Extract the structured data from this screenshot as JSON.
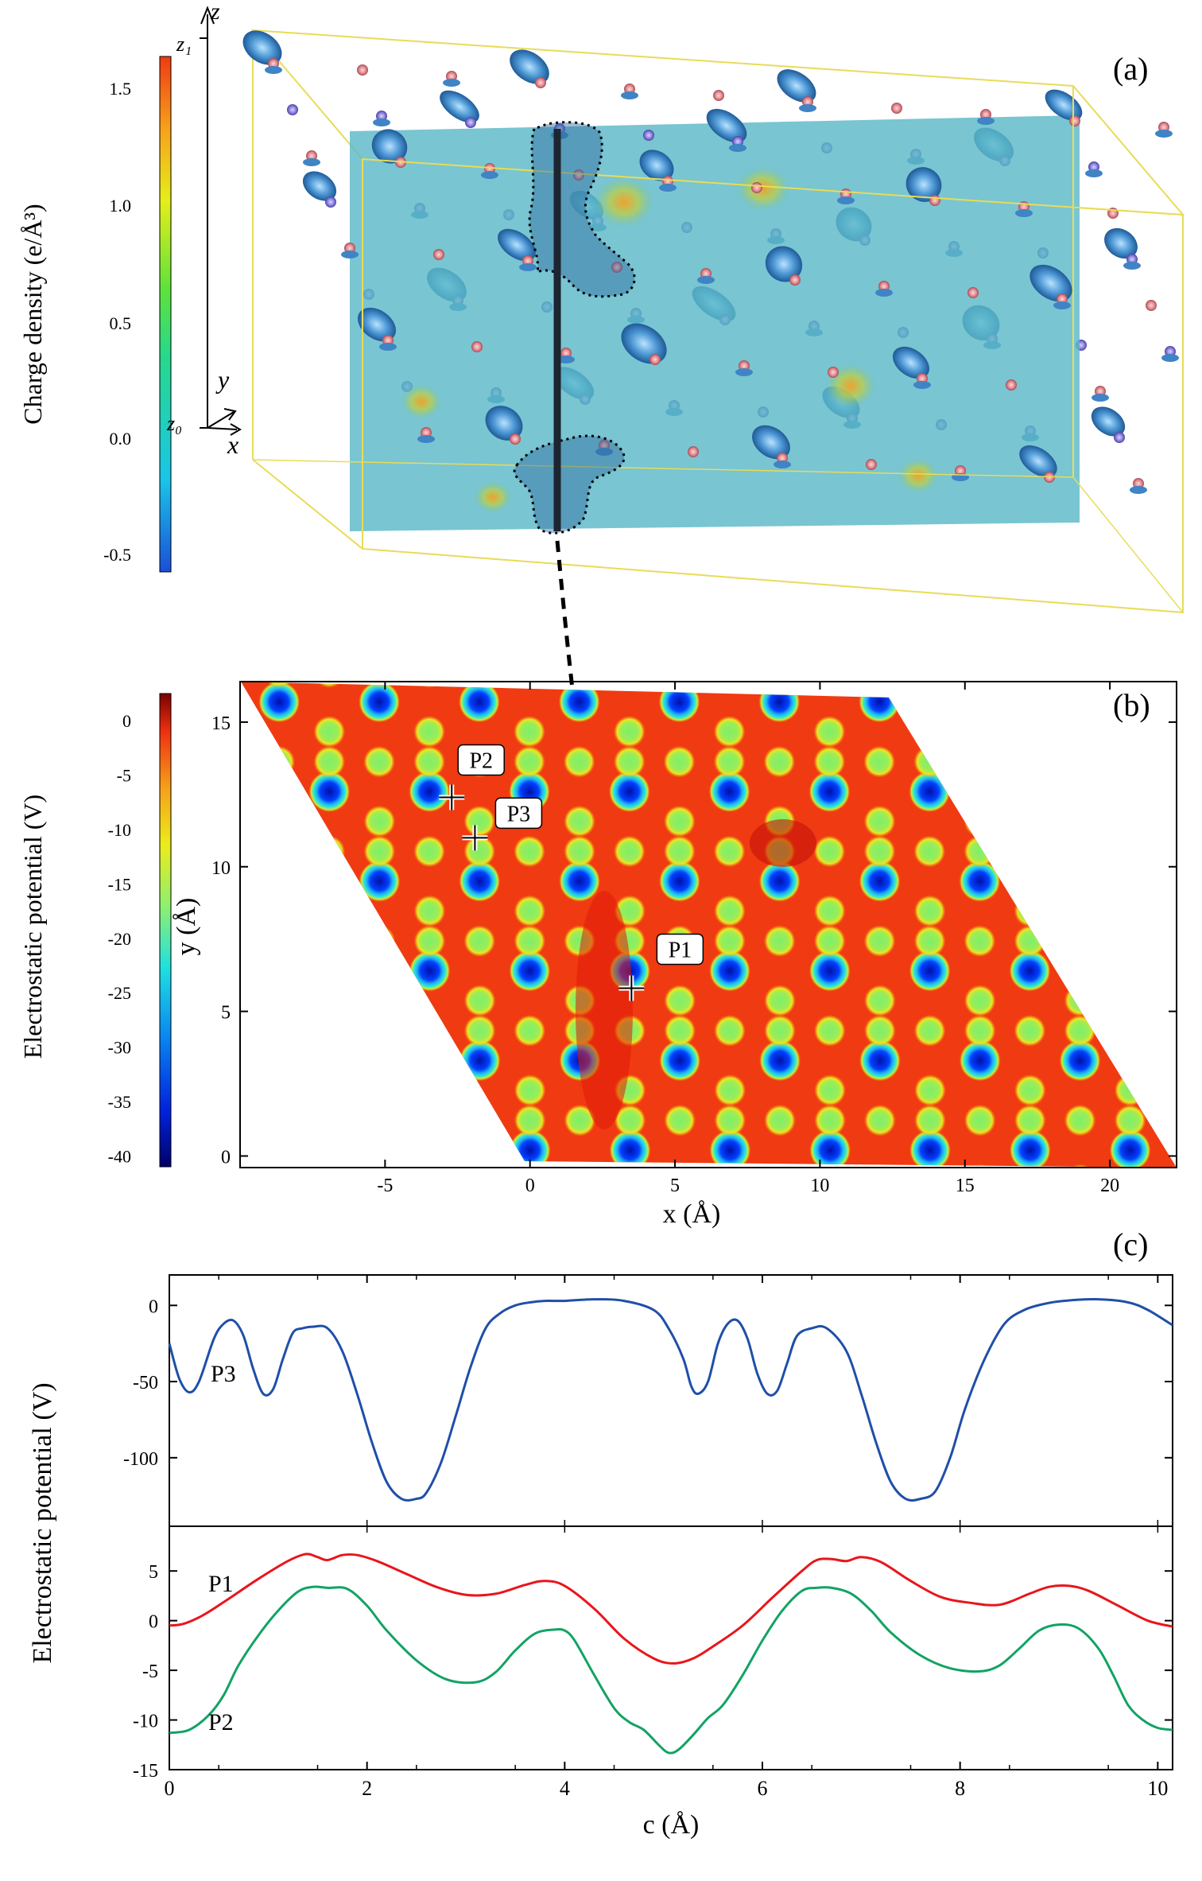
{
  "colors": {
    "blue_line": "#1f4fa8",
    "red_line": "#e8161b",
    "green_line": "#12a364",
    "box_edge": "#e8dc58",
    "slice_fill": "#5bb8c6",
    "iso_surface": "#4d93cf",
    "atom_pink": "#e89aa0",
    "atom_purple": "#8f86dc"
  },
  "panel_a": {
    "label": "(a)",
    "colorbar_title": "Charge density (e/Å³)",
    "colorbar_ticks": [
      "1.5",
      "1.0",
      "0.5",
      "0.0",
      "-0.5"
    ],
    "axis_z": "z",
    "axis_z1": "z₁",
    "axis_z0": "z₀",
    "axis_y": "y",
    "axis_x": "x"
  },
  "chart_data": [
    {
      "type": "heatmap",
      "panel": "(b)",
      "colorbar_title": "Electrostatic potential (V)",
      "colorbar_ticks": [
        "0",
        "-5",
        "-10",
        "-15",
        "-20",
        "-25",
        "-30",
        "-35",
        "-40"
      ],
      "colorbar_range": [
        -41,
        2.5
      ],
      "xlabel": "x (Å)",
      "ylabel": "y (Å)",
      "xticks": [
        "-5",
        "0",
        "5",
        "10",
        "15",
        "20"
      ],
      "yticks": [
        "0",
        "5",
        "10",
        "15"
      ],
      "xlim": [
        -10,
        22.3
      ],
      "ylim": [
        -0.4,
        16.4
      ],
      "points": [
        {
          "label": "P1",
          "x": 3.5,
          "y": 5.8
        },
        {
          "label": "P2",
          "x": -2.7,
          "y": 12.4
        },
        {
          "label": "P3",
          "x": -1.9,
          "y": 11.0
        }
      ]
    },
    {
      "type": "line",
      "panel": "(c)",
      "xlabel": "c (Å)",
      "ylabel": "Electrostatic potential (V)",
      "xticks": [
        "0",
        "2",
        "4",
        "6",
        "8",
        "10"
      ],
      "xlim": [
        0,
        10.15
      ],
      "upper": {
        "ylim": [
          -145,
          20
        ],
        "yticks": [
          "0",
          "-50",
          "-100"
        ],
        "series": [
          {
            "name": "P3",
            "x": [
              0,
              0.1,
              0.2,
              0.3,
              0.45,
              0.55,
              0.65,
              0.75,
              0.85,
              0.95,
              1.05,
              1.15,
              1.25,
              1.35,
              1.45,
              1.6,
              1.75,
              1.9,
              2.05,
              2.2,
              2.35,
              2.5,
              2.6,
              2.75,
              2.9,
              3.05,
              3.2,
              3.35,
              3.5,
              3.65,
              3.8,
              4.0,
              4.3,
              4.6,
              4.9,
              5.05,
              5.2,
              5.28,
              5.35,
              5.45,
              5.55,
              5.65,
              5.75,
              5.85,
              5.95,
              6.05,
              6.15,
              6.25,
              6.35,
              6.5,
              6.65,
              6.85,
              7.0,
              7.15,
              7.3,
              7.45,
              7.6,
              7.75,
              7.9,
              8.05,
              8.25,
              8.45,
              8.65,
              8.85,
              9.05,
              9.4,
              9.7,
              9.9,
              10.15
            ],
            "y": [
              -25,
              -48,
              -57,
              -50,
              -22,
              -12,
              -10,
              -20,
              -42,
              -58,
              -55,
              -35,
              -18,
              -15,
              -14,
              -15,
              -30,
              -58,
              -90,
              -116,
              -127,
              -127,
              -123,
              -103,
              -72,
              -40,
              -15,
              -5,
              0,
              2,
              3,
              3,
              4,
              3,
              -3,
              -15,
              -35,
              -53,
              -58,
              -50,
              -25,
              -12,
              -10,
              -22,
              -45,
              -58,
              -56,
              -38,
              -20,
              -15,
              -15,
              -30,
              -58,
              -90,
              -116,
              -127,
              -127,
              -122,
              -100,
              -68,
              -35,
              -12,
              -3,
              1,
              3,
              4,
              2,
              -3,
              -13
            ]
          }
        ]
      },
      "lower": {
        "ylim": [
          -15,
          9.5
        ],
        "yticks": [
          "5",
          "0",
          "-5",
          "-10",
          "-15"
        ],
        "series": [
          {
            "name": "P1",
            "x": [
              0,
              0.15,
              0.35,
              0.6,
              0.9,
              1.2,
              1.38,
              1.5,
              1.6,
              1.75,
              1.9,
              2.1,
              2.4,
              2.7,
              3.0,
              3.3,
              3.6,
              3.8,
              4.0,
              4.3,
              4.6,
              4.9,
              5.1,
              5.3,
              5.5,
              5.8,
              6.1,
              6.4,
              6.55,
              6.7,
              6.85,
              7.0,
              7.2,
              7.5,
              7.8,
              8.1,
              8.4,
              8.7,
              8.9,
              9.1,
              9.3,
              9.6,
              9.9,
              10.15
            ],
            "y": [
              -0.5,
              -0.3,
              0.6,
              2.2,
              4.2,
              6.0,
              6.7,
              6.4,
              6.1,
              6.6,
              6.6,
              6.0,
              4.7,
              3.4,
              2.6,
              2.7,
              3.6,
              4.0,
              3.5,
              1.2,
              -1.8,
              -3.8,
              -4.3,
              -3.8,
              -2.6,
              -0.5,
              2.3,
              5.0,
              6.1,
              6.2,
              6.0,
              6.4,
              5.9,
              4.0,
              2.4,
              1.8,
              1.6,
              2.7,
              3.4,
              3.5,
              3.0,
              1.5,
              0.0,
              -0.6
            ]
          },
          {
            "name": "P2",
            "x": [
              0,
              0.2,
              0.4,
              0.55,
              0.7,
              0.9,
              1.1,
              1.3,
              1.45,
              1.6,
              1.8,
              2.0,
              2.2,
              2.5,
              2.8,
              3.1,
              3.3,
              3.5,
              3.7,
              3.9,
              4.0,
              4.1,
              4.3,
              4.5,
              4.65,
              4.8,
              4.95,
              5.05,
              5.15,
              5.3,
              5.45,
              5.6,
              5.8,
              6.0,
              6.2,
              6.4,
              6.55,
              6.7,
              6.9,
              7.1,
              7.3,
              7.6,
              7.9,
              8.2,
              8.4,
              8.6,
              8.8,
              9.0,
              9.2,
              9.4,
              9.55,
              9.7,
              9.85,
              10.0,
              10.15
            ],
            "y": [
              -11.3,
              -11.0,
              -9.5,
              -7.5,
              -4.5,
              -1.5,
              1.0,
              2.9,
              3.4,
              3.3,
              3.2,
              1.5,
              -1.0,
              -4.0,
              -5.9,
              -6.2,
              -5.2,
              -3.0,
              -1.3,
              -0.9,
              -1.0,
              -2.0,
              -5.5,
              -8.8,
              -10.2,
              -11.0,
              -12.5,
              -13.3,
              -13.0,
              -11.5,
              -9.8,
              -8.5,
              -5.5,
              -2.0,
              1.0,
              3.0,
              3.3,
              3.3,
              2.7,
              1.0,
              -1.2,
              -3.5,
              -4.8,
              -5.1,
              -4.5,
              -2.8,
              -1.0,
              -0.4,
              -0.8,
              -2.8,
              -5.5,
              -8.5,
              -10.0,
              -10.8,
              -11.0
            ]
          }
        ]
      },
      "labels": {
        "p3": "P3",
        "p1": "P1",
        "p2": "P2",
        "panel": "(c)"
      }
    }
  ]
}
